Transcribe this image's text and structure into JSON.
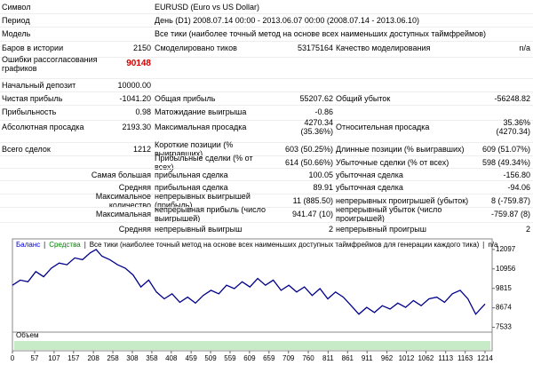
{
  "report": {
    "rows": [
      [
        "Символ",
        "EURUSD (Euro vs US Dollar)"
      ],
      [
        "Период",
        "День (D1) 2008.07.14 00:00 - 2013.06.07 00:00 (2008.07.14 - 2013.06.10)"
      ],
      [
        "Модель",
        "Все тики (наиболее точный метод на основе всех наименьших доступных таймфреймов)"
      ],
      [
        "Баров в истории",
        "2150",
        "Смоделировано тиков",
        "53175164",
        "Качество моделирования",
        "n/a"
      ],
      [
        "Ошибки рассогласования графиков",
        "90148"
      ],
      [
        "Начальный депозит",
        "10000.00"
      ],
      [
        "Чистая прибыль",
        "-1041.20",
        "Общая прибыль",
        "55207.62",
        "Общий убыток",
        "-56248.82"
      ],
      [
        "Прибыльность",
        "0.98",
        "Матожидание выигрыша",
        "-0.86"
      ],
      [
        "Абсолютная просадка",
        "2193.30",
        "Максимальная просадка",
        "4270.34 (35.36%)",
        "Относительная просадка",
        "35.36% (4270.34)"
      ],
      [
        "Всего сделок",
        "1212",
        "Короткие позиции (% выигравших)",
        "603 (50.25%)",
        "Длинные позиции (% выигравших)",
        "609 (51.07%)"
      ],
      [
        "Прибыльные сделки (% от всех)",
        "614 (50.66%)",
        "Убыточные сделки (% от всех)",
        "598 (49.34%)"
      ],
      [
        "Самая большая",
        "прибыльная сделка",
        "100.05",
        "убыточная сделка",
        "-156.80"
      ],
      [
        "Средняя",
        "прибыльная сделка",
        "89.91",
        "убыточная сделка",
        "-94.06"
      ],
      [
        "Максимальное количество",
        "непрерывных выигрышей (прибыль)",
        "11 (885.50)",
        "непрерывных проигрышей (убыток)",
        "8 (-759.87)"
      ],
      [
        "Максимальная",
        "непрерывная прибыль (число выигрышей)",
        "941.47 (10)",
        "непрерывный убыток (число проигрышей)",
        "-759.87 (8)"
      ],
      [
        "Средняя",
        "непрерывный выигрыш",
        "2",
        "непрерывный проигрыш",
        "2"
      ]
    ]
  },
  "chart_data": {
    "type": "line",
    "legend": [
      "Баланс",
      "Средства",
      "Все тики (наиболее точный метод на основе всех наименьших доступных таймфреймов для генерации каждого тика)",
      "n/a"
    ],
    "volume_label": "Объем",
    "x": [
      0,
      20,
      40,
      60,
      80,
      100,
      120,
      140,
      160,
      180,
      200,
      215,
      230,
      250,
      270,
      290,
      310,
      330,
      350,
      370,
      390,
      410,
      430,
      450,
      470,
      490,
      510,
      530,
      550,
      570,
      590,
      610,
      630,
      650,
      670,
      690,
      710,
      730,
      750,
      770,
      790,
      810,
      830,
      850,
      870,
      890,
      910,
      930,
      950,
      970,
      990,
      1010,
      1030,
      1050,
      1070,
      1090,
      1110,
      1130,
      1150,
      1170,
      1190,
      1214
    ],
    "series": [
      {
        "name": "Баланс",
        "color": "#00008b",
        "values": [
          10000,
          10300,
          10200,
          10800,
          10500,
          11000,
          11300,
          11200,
          11600,
          11500,
          11900,
          12097,
          11700,
          11500,
          11200,
          11000,
          10600,
          9900,
          10300,
          9600,
          9200,
          9500,
          9000,
          9300,
          8950,
          9400,
          9700,
          9500,
          10000,
          9800,
          10200,
          9900,
          10400,
          10000,
          10300,
          9700,
          10000,
          9600,
          9900,
          9400,
          9800,
          9200,
          9600,
          9300,
          8800,
          8300,
          8700,
          8400,
          8800,
          8600,
          8950,
          8700,
          9100,
          8800,
          9200,
          9300,
          9000,
          9500,
          9700,
          9200,
          8300,
          8900
        ]
      }
    ],
    "xlim": [
      0,
      1214
    ],
    "ylim": [
      7300,
      12560
    ],
    "xticks": [
      0,
      57,
      107,
      157,
      208,
      258,
      308,
      358,
      408,
      459,
      509,
      559,
      609,
      659,
      709,
      760,
      811,
      861,
      911,
      962,
      1012,
      1062,
      1113,
      1163,
      1214
    ],
    "yticks": [
      12097,
      10956,
      9815,
      8674,
      7533
    ]
  }
}
